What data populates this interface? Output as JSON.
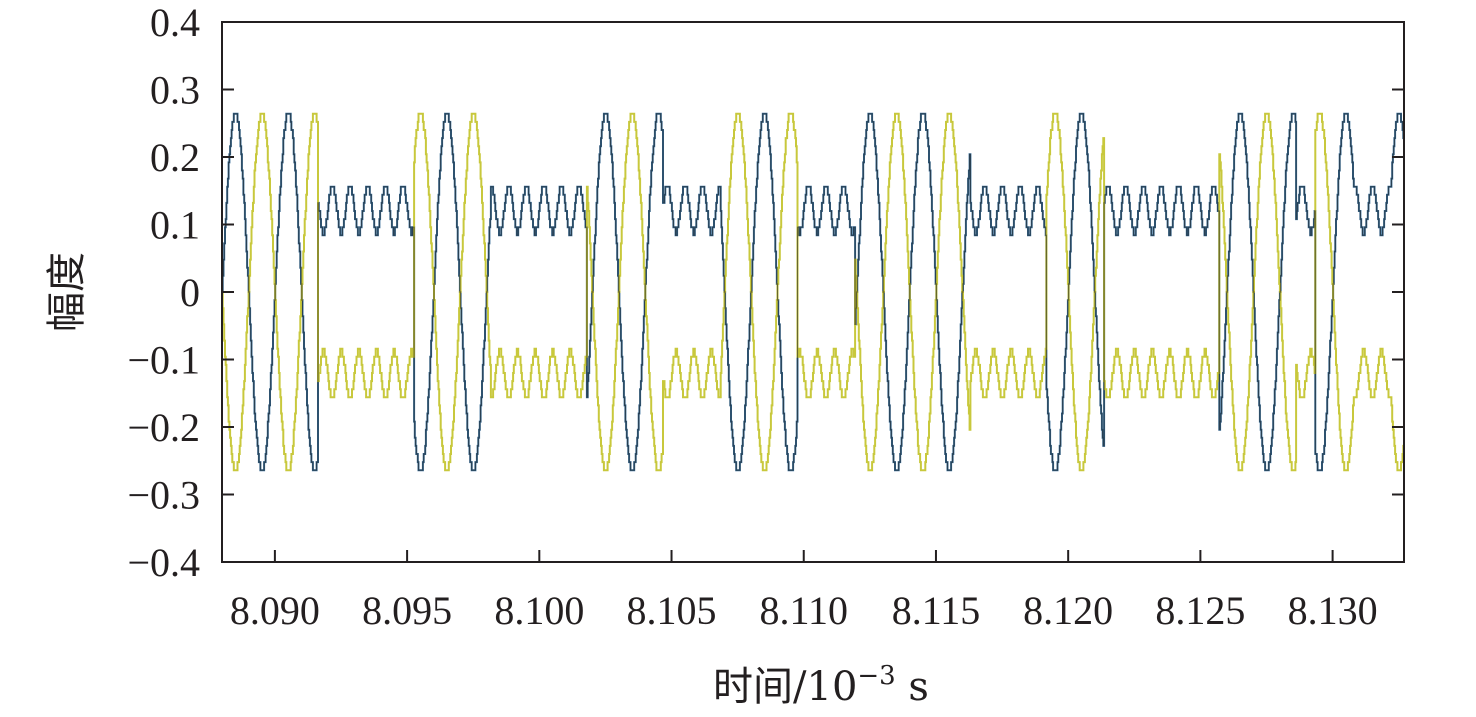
{
  "chart_data": {
    "type": "line",
    "title": "",
    "xlabel": "时间/10",
    "xlabel_exponent": "−3",
    "xlabel_unit": " s",
    "ylabel": "幅度",
    "xlim": [
      8.088,
      8.1327
    ],
    "ylim": [
      -0.4,
      0.4
    ],
    "x_ticks": [
      8.09,
      8.095,
      8.1,
      8.105,
      8.11,
      8.115,
      8.12,
      8.125,
      8.13
    ],
    "x_tick_labels": [
      "8.090",
      "8.095",
      "8.100",
      "8.105",
      "8.110",
      "8.115",
      "8.120",
      "8.125",
      "8.130"
    ],
    "y_ticks": [
      0.4,
      0.3,
      0.2,
      0.1,
      0,
      -0.1,
      -0.2,
      -0.3,
      -0.4
    ],
    "y_tick_labels": [
      "0.4",
      "0.3",
      "0.2",
      "0.1",
      "0",
      "−0.1",
      "−0.2",
      "−0.3",
      "−0.4"
    ],
    "grid": false,
    "legend": "none",
    "signal": {
      "carrier_period": 0.001,
      "envelope": {
        "large_peak": 0.265,
        "large_trough": 0.095,
        "small_peak": 0.158,
        "small_trough": 0.088
      },
      "bits": [
        1,
        1,
        1,
        1,
        1,
        0,
        0,
        0,
        0,
        0,
        1,
        1,
        1,
        1,
        0,
        0,
        0,
        0,
        0,
        1,
        1,
        1,
        1,
        0,
        0,
        0,
        1,
        1,
        1,
        1,
        0,
        0,
        0,
        1,
        1,
        1,
        1,
        1,
        1,
        0,
        0,
        0,
        0,
        1,
        1,
        1,
        0,
        0,
        0,
        0,
        0,
        0,
        1,
        1,
        1,
        1,
        0,
        1,
        1,
        0,
        0,
        1
      ],
      "bit_duration": 0.000725,
      "start_x": 8.088
    },
    "series": [
      {
        "color": "#3a6f9a",
        "phase": 0
      },
      {
        "color": "#c8c83c",
        "phase": 1
      },
      {
        "color": "#1a1a1a",
        "phase": 0
      }
    ]
  }
}
